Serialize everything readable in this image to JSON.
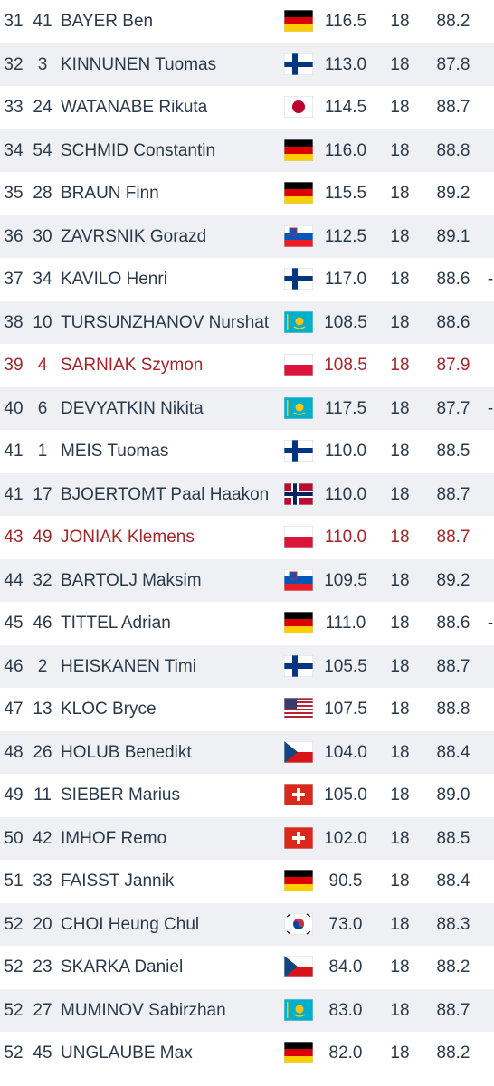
{
  "colors": {
    "text": "#2b3a4a",
    "highlight_text": "#a3262a",
    "stripe": "#eef0f3",
    "background": "#ffffff"
  },
  "rows": [
    {
      "rank": "31",
      "bib": "41",
      "name": "BAYER Ben",
      "country": "GER",
      "dist": "116.5",
      "gate": "18",
      "speed": "88.2",
      "edge": ""
    },
    {
      "rank": "32",
      "bib": "3",
      "name": "KINNUNEN Tuomas",
      "country": "FIN",
      "dist": "113.0",
      "gate": "18",
      "speed": "87.8",
      "edge": ""
    },
    {
      "rank": "33",
      "bib": "24",
      "name": "WATANABE Rikuta",
      "country": "JPN",
      "dist": "114.5",
      "gate": "18",
      "speed": "88.7",
      "edge": ""
    },
    {
      "rank": "34",
      "bib": "54",
      "name": "SCHMID Constantin",
      "country": "GER",
      "dist": "116.0",
      "gate": "18",
      "speed": "88.8",
      "edge": ""
    },
    {
      "rank": "35",
      "bib": "28",
      "name": "BRAUN Finn",
      "country": "GER",
      "dist": "115.5",
      "gate": "18",
      "speed": "89.2",
      "edge": ""
    },
    {
      "rank": "36",
      "bib": "30",
      "name": "ZAVRSNIK Gorazd",
      "country": "SLO",
      "dist": "112.5",
      "gate": "18",
      "speed": "89.1",
      "edge": ""
    },
    {
      "rank": "37",
      "bib": "34",
      "name": "KAVILO Henri",
      "country": "FIN",
      "dist": "117.0",
      "gate": "18",
      "speed": "88.6",
      "edge": "-"
    },
    {
      "rank": "38",
      "bib": "10",
      "name": "TURSUNZHANOV Nurshat",
      "country": "KAZ",
      "dist": "108.5",
      "gate": "18",
      "speed": "88.6",
      "edge": ""
    },
    {
      "rank": "39",
      "bib": "4",
      "name": "SARNIAK Szymon",
      "country": "POL",
      "dist": "108.5",
      "gate": "18",
      "speed": "87.9",
      "edge": "",
      "highlight": true
    },
    {
      "rank": "40",
      "bib": "6",
      "name": "DEVYATKIN Nikita",
      "country": "KAZ",
      "dist": "117.5",
      "gate": "18",
      "speed": "87.7",
      "edge": "-"
    },
    {
      "rank": "41",
      "bib": "1",
      "name": "MEIS Tuomas",
      "country": "FIN",
      "dist": "110.0",
      "gate": "18",
      "speed": "88.5",
      "edge": ""
    },
    {
      "rank": "41",
      "bib": "17",
      "name": "BJOERTOMT Paal Haakon",
      "country": "NOR",
      "dist": "110.0",
      "gate": "18",
      "speed": "88.7",
      "edge": ""
    },
    {
      "rank": "43",
      "bib": "49",
      "name": "JONIAK Klemens",
      "country": "POL",
      "dist": "110.0",
      "gate": "18",
      "speed": "88.7",
      "edge": "",
      "highlight": true
    },
    {
      "rank": "44",
      "bib": "32",
      "name": "BARTOLJ Maksim",
      "country": "SLO",
      "dist": "109.5",
      "gate": "18",
      "speed": "89.2",
      "edge": ""
    },
    {
      "rank": "45",
      "bib": "46",
      "name": "TITTEL Adrian",
      "country": "GER",
      "dist": "111.0",
      "gate": "18",
      "speed": "88.6",
      "edge": "-"
    },
    {
      "rank": "46",
      "bib": "2",
      "name": "HEISKANEN Timi",
      "country": "FIN",
      "dist": "105.5",
      "gate": "18",
      "speed": "88.7",
      "edge": ""
    },
    {
      "rank": "47",
      "bib": "13",
      "name": "KLOC Bryce",
      "country": "USA",
      "dist": "107.5",
      "gate": "18",
      "speed": "88.8",
      "edge": ""
    },
    {
      "rank": "48",
      "bib": "26",
      "name": "HOLUB Benedikt",
      "country": "CZE",
      "dist": "104.0",
      "gate": "18",
      "speed": "88.4",
      "edge": ""
    },
    {
      "rank": "49",
      "bib": "11",
      "name": "SIEBER Marius",
      "country": "SUI",
      "dist": "105.0",
      "gate": "18",
      "speed": "89.0",
      "edge": ""
    },
    {
      "rank": "50",
      "bib": "42",
      "name": "IMHOF Remo",
      "country": "SUI",
      "dist": "102.0",
      "gate": "18",
      "speed": "88.5",
      "edge": ""
    },
    {
      "rank": "51",
      "bib": "33",
      "name": "FAISST Jannik",
      "country": "GER",
      "dist": "90.5",
      "gate": "18",
      "speed": "88.4",
      "edge": ""
    },
    {
      "rank": "52",
      "bib": "20",
      "name": "CHOI Heung Chul",
      "country": "KOR",
      "dist": "73.0",
      "gate": "18",
      "speed": "88.3",
      "edge": ""
    },
    {
      "rank": "52",
      "bib": "23",
      "name": "SKARKA Daniel",
      "country": "CZE",
      "dist": "84.0",
      "gate": "18",
      "speed": "88.2",
      "edge": ""
    },
    {
      "rank": "52",
      "bib": "27",
      "name": "MUMINOV Sabirzhan",
      "country": "KAZ",
      "dist": "83.0",
      "gate": "18",
      "speed": "88.7",
      "edge": ""
    },
    {
      "rank": "52",
      "bib": "45",
      "name": "UNGLAUBE Max",
      "country": "GER",
      "dist": "82.0",
      "gate": "18",
      "speed": "88.2",
      "edge": ""
    }
  ]
}
